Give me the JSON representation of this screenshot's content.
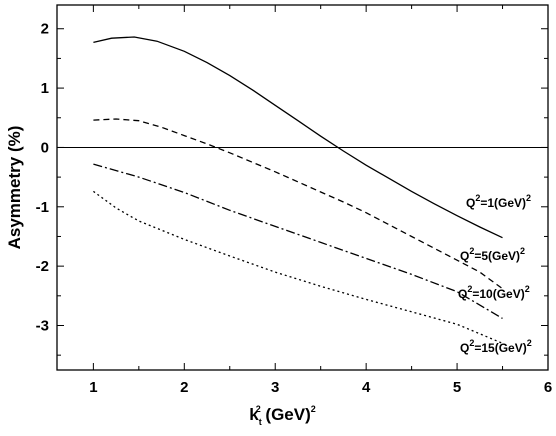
{
  "chart_data": {
    "type": "line",
    "title": "",
    "xlabel": {
      "base": "k",
      "sub": "t",
      "sup": "2",
      "unit": " (GeV)",
      "unit_sup": "2"
    },
    "ylabel": "Asymmetry (%)",
    "xlim": [
      0.6,
      6
    ],
    "ylim": [
      -3.75,
      2.4
    ],
    "xticks": [
      1,
      2,
      3,
      4,
      5,
      6
    ],
    "yticks": [
      -3,
      -2,
      -1,
      0,
      1,
      2
    ],
    "grid": false,
    "reference_lines": [
      {
        "y": 0,
        "style": "solid"
      }
    ],
    "series": [
      {
        "label": {
          "q": "Q",
          "sup": "2",
          "eq": "=1(GeV)",
          "unit_sup": "2"
        },
        "style": "solid",
        "x": [
          1.0,
          1.2,
          1.45,
          1.7,
          2.0,
          2.25,
          2.5,
          2.75,
          3.0,
          3.25,
          3.5,
          3.75,
          4.0,
          4.25,
          4.5,
          4.75,
          5.0,
          5.25,
          5.5
        ],
        "y": [
          1.77,
          1.84,
          1.86,
          1.79,
          1.62,
          1.43,
          1.21,
          0.97,
          0.71,
          0.45,
          0.19,
          -0.06,
          -0.3,
          -0.52,
          -0.74,
          -0.95,
          -1.15,
          -1.34,
          -1.52
        ]
      },
      {
        "label": {
          "q": "Q",
          "sup": "2",
          "eq": "=5(GeV)",
          "unit_sup": "2"
        },
        "style": "dashed",
        "x": [
          1.0,
          1.25,
          1.5,
          1.75,
          2.0,
          2.25,
          2.5,
          2.75,
          3.0,
          3.25,
          3.5,
          3.75,
          4.0,
          4.25,
          4.5,
          4.75,
          5.0,
          5.25,
          5.5
        ],
        "y": [
          0.46,
          0.48,
          0.45,
          0.34,
          0.2,
          0.06,
          -0.09,
          -0.25,
          -0.41,
          -0.58,
          -0.75,
          -0.92,
          -1.1,
          -1.3,
          -1.5,
          -1.7,
          -1.9,
          -2.1,
          -2.38
        ]
      },
      {
        "label": {
          "q": "Q",
          "sup": "2",
          "eq": "=10(GeV)",
          "unit_sup": "2"
        },
        "style": "dashdot",
        "x": [
          1.0,
          1.5,
          2.0,
          2.5,
          3.0,
          3.5,
          4.0,
          4.5,
          5.0,
          5.5
        ],
        "y": [
          -0.28,
          -0.5,
          -0.76,
          -1.06,
          -1.33,
          -1.6,
          -1.87,
          -2.14,
          -2.43,
          -2.88
        ]
      },
      {
        "label": {
          "q": "Q",
          "sup": "2",
          "eq": "=15(GeV)",
          "unit_sup": "2"
        },
        "style": "dotted",
        "x": [
          1.0,
          1.25,
          1.5,
          2.0,
          2.5,
          3.0,
          3.5,
          4.0,
          4.5,
          5.0,
          5.5
        ],
        "y": [
          -0.74,
          -1.02,
          -1.24,
          -1.55,
          -1.83,
          -2.1,
          -2.34,
          -2.56,
          -2.77,
          -2.98,
          -3.3
        ]
      }
    ]
  }
}
